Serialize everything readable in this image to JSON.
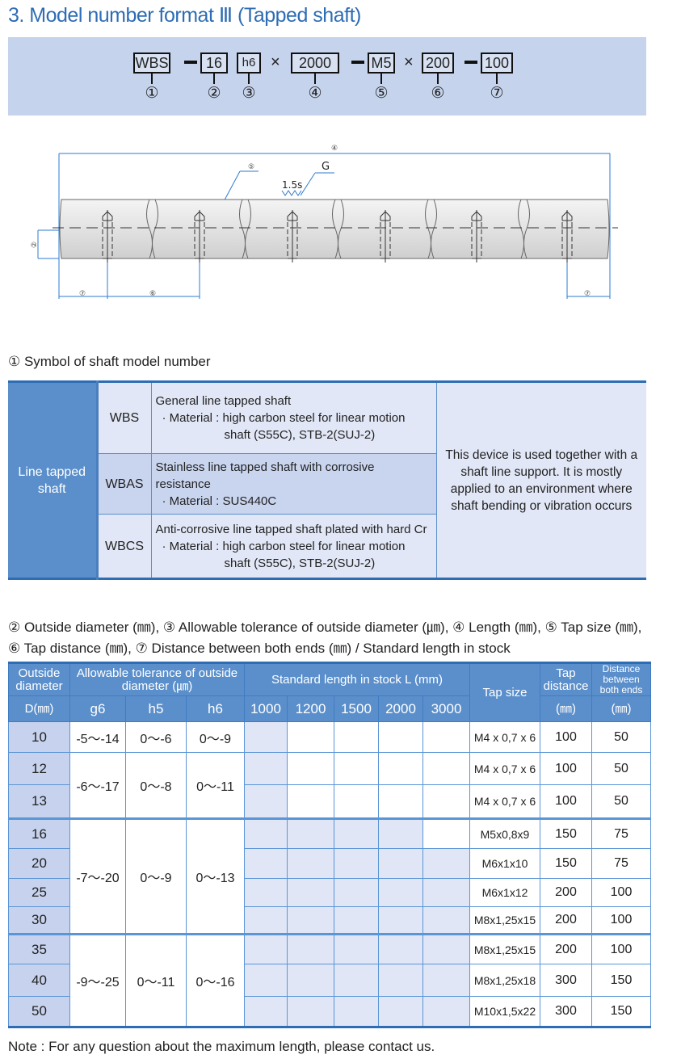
{
  "title": "3. Model number format Ⅲ (Tapped shaft)",
  "format": {
    "parts": [
      "WBS",
      "16",
      "h6",
      "2000",
      "M5",
      "200",
      "100"
    ],
    "separators": [
      "—",
      "",
      "×",
      "—",
      "×",
      "—"
    ],
    "numbers": [
      "①",
      "②",
      "③",
      "④",
      "⑤",
      "⑥",
      "⑦"
    ]
  },
  "diagram": {
    "labels": {
      "length": "④",
      "tap": "⑤",
      "grind": "G",
      "roughness": "1.5s",
      "diameter": "②",
      "end_left": "⑦",
      "pitch": "⑥",
      "end_right": "⑦"
    }
  },
  "symbol_section": {
    "heading": "① Symbol of shaft model number",
    "category": "Line tapped shaft",
    "rows": [
      {
        "code": "WBS",
        "title": "General line tapped shaft",
        "material": "· Material : high carbon steel for linear motion",
        "material2": "shaft (S55C), STB-2(SUJ-2)"
      },
      {
        "code": "WBAS",
        "title": "Stainless line tapped shaft with corrosive resistance",
        "material": "· Material : SUS440C",
        "material2": ""
      },
      {
        "code": "WBCS",
        "title": "Anti-corrosive line tapped shaft plated with hard Cr",
        "material": "· Material : high carbon steel for linear motion",
        "material2": "shaft (S55C), STB-2(SUJ-2)"
      }
    ],
    "note": "This device is used together with a shaft line support. It is mostly applied to an environment where shaft bending or vibration occurs"
  },
  "spec_section": {
    "heading1": "② Outside diameter (㎜), ③ Allowable tolerance of outside diameter (㎛), ④ Length (㎜), ⑤ Tap size (㎜),",
    "heading2": "⑥ Tap distance (㎜), ⑦ Distance between both ends (㎜) / Standard length in stock",
    "headers": {
      "od": "Outside diameter",
      "od_unit": "D(㎜)",
      "tol": "Allowable tolerance of outside diameter (㎛)",
      "tol_cols": [
        "g6",
        "h5",
        "h6"
      ],
      "stock": "Standard length in stock L (mm)",
      "stock_cols": [
        "1000",
        "1200",
        "1500",
        "2000",
        "3000"
      ],
      "tap": "Tap size",
      "tapdist": "Tap distance",
      "tapdist_unit": "(㎜)",
      "ends": "Distance between both ends",
      "ends_unit": "(㎜)"
    },
    "groups": [
      {
        "g6": "-5～-14",
        "h5": "0～-6",
        "h6": "0～-9",
        "rows": [
          {
            "d": "10",
            "stock": [
              1,
              0,
              0,
              0,
              0
            ],
            "tap": "M4 x 0,7 x 6",
            "tapdist": "100",
            "ends": "50"
          }
        ]
      },
      {
        "g6": "-6～-17",
        "h5": "0～-8",
        "h6": "0～-11",
        "rows": [
          {
            "d": "12",
            "stock": [
              1,
              0,
              0,
              0,
              0
            ],
            "tap": "M4 x 0,7 x 6",
            "tapdist": "100",
            "ends": "50"
          },
          {
            "d": "13",
            "stock": [
              1,
              0,
              0,
              0,
              0
            ],
            "tap": "M4 x 0,7 x 6",
            "tapdist": "100",
            "ends": "50"
          }
        ]
      },
      {
        "g6": "-7～-20",
        "h5": "0～-9",
        "h6": "0～-13",
        "rows": [
          {
            "d": "16",
            "stock": [
              1,
              1,
              1,
              1,
              0
            ],
            "tap": "M5x0,8x9",
            "tapdist": "150",
            "ends": "75"
          },
          {
            "d": "20",
            "stock": [
              1,
              1,
              1,
              1,
              1
            ],
            "tap": "M6x1x10",
            "tapdist": "150",
            "ends": "75"
          },
          {
            "d": "25",
            "stock": [
              1,
              1,
              1,
              1,
              1
            ],
            "tap": "M6x1x12",
            "tapdist": "200",
            "ends": "100"
          },
          {
            "d": "30",
            "stock": [
              1,
              1,
              1,
              1,
              1
            ],
            "tap": "M8x1,25x15",
            "tapdist": "200",
            "ends": "100"
          }
        ]
      },
      {
        "g6": "-9～-25",
        "h5": "0～-11",
        "h6": "0～-16",
        "rows": [
          {
            "d": "35",
            "stock": [
              1,
              1,
              1,
              1,
              1
            ],
            "tap": "M8x1,25x15",
            "tapdist": "200",
            "ends": "100"
          },
          {
            "d": "40",
            "stock": [
              1,
              1,
              1,
              1,
              1
            ],
            "tap": "M8x1,25x18",
            "tapdist": "300",
            "ends": "150"
          },
          {
            "d": "50",
            "stock": [
              1,
              1,
              1,
              1,
              1
            ],
            "tap": "M10x1,5x22",
            "tapdist": "300",
            "ends": "150"
          }
        ]
      }
    ]
  },
  "note": "Note : For any question about the maximum length, please contact us.",
  "colors": {
    "accent": "#2e6db4",
    "header": "#5b8fcb",
    "light": "#e1e7f6",
    "band": "#c5d3ec"
  }
}
